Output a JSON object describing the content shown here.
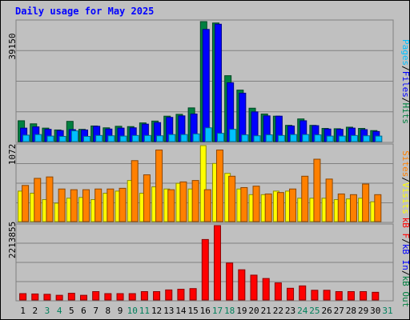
{
  "chart_data": {
    "type": "bar",
    "title": "Daily usage for May 2025",
    "colors": {
      "hits": "#008040",
      "files": "#0000ff",
      "pages": "#00c0ff",
      "visits": "#ffff00",
      "sites": "#ff8000",
      "kbytes": "#ff0000",
      "weekend_label": "#00805c",
      "weekday_label": "#000000",
      "label_kb_f": "#ff0000",
      "label_kb_in": "#0000ff",
      "label_kb_out": "#008040",
      "label_hits": "#008040",
      "label_files": "#0000ff",
      "label_pages": "#00c0ff",
      "label_visits": "#ffff00",
      "label_sites": "#ff8000",
      "label_sep": "#000000"
    },
    "days": [
      "1",
      "2",
      "3",
      "4",
      "5",
      "6",
      "7",
      "8",
      "9",
      "10",
      "11",
      "12",
      "13",
      "14",
      "15",
      "16",
      "17",
      "18",
      "19",
      "20",
      "21",
      "22",
      "23",
      "24",
      "25",
      "26",
      "27",
      "28",
      "29",
      "30",
      "31"
    ],
    "weekend_days": [
      "3",
      "4",
      "10",
      "11",
      "17",
      "18",
      "24",
      "25",
      "31"
    ],
    "panels": {
      "top": {
        "max_label": "39150",
        "ymax": 39150,
        "series": {
          "hits": [
            6800,
            5800,
            4400,
            3800,
            6600,
            4000,
            5100,
            4500,
            5000,
            4900,
            6100,
            6700,
            8300,
            8900,
            11000,
            39150,
            38700,
            21500,
            16800,
            10900,
            9000,
            8300,
            5300,
            7400,
            5300,
            4300,
            4200,
            4700,
            4300,
            3600,
            0
          ],
          "files": [
            4400,
            4800,
            4000,
            3600,
            3900,
            3800,
            5000,
            4100,
            4400,
            4500,
            5700,
            6200,
            7900,
            8400,
            9000,
            36600,
            38300,
            19200,
            15800,
            9700,
            8400,
            8300,
            5100,
            6800,
            5200,
            4100,
            4000,
            4400,
            3900,
            3300,
            0
          ],
          "pages": [
            2100,
            2300,
            1800,
            1700,
            3500,
            1700,
            2000,
            1900,
            1800,
            2000,
            2000,
            1900,
            2300,
            2300,
            2500,
            4500,
            2700,
            4000,
            2200,
            1900,
            2200,
            2000,
            2300,
            2300,
            2200,
            1800,
            1800,
            2000,
            1900,
            1800,
            0
          ]
        },
        "labels": {
          "hits": "Hits",
          "files": "Files",
          "pages": "Pages",
          "sep": "/"
        }
      },
      "middle": {
        "max_label": "1072",
        "ymax": 1072,
        "series": {
          "visits": [
            430,
            400,
            310,
            260,
            330,
            340,
            310,
            400,
            430,
            580,
            400,
            490,
            460,
            540,
            460,
            1072,
            820,
            680,
            460,
            380,
            380,
            430,
            430,
            330,
            330,
            330,
            310,
            320,
            330,
            280,
            0
          ],
          "sites": [
            510,
            610,
            630,
            460,
            450,
            450,
            460,
            460,
            470,
            860,
            660,
            1010,
            450,
            560,
            580,
            450,
            1010,
            640,
            480,
            500,
            390,
            410,
            460,
            640,
            880,
            600,
            390,
            380,
            530,
            380,
            0
          ]
        },
        "labels": {
          "visits": "Visits",
          "sites": "Sites",
          "sep": "/"
        }
      },
      "bottom": {
        "max_label": "2213855",
        "ymax": 2213855,
        "series": {
          "kbytes": [
            190000,
            180000,
            170000,
            140000,
            200000,
            140000,
            250000,
            190000,
            190000,
            190000,
            250000,
            250000,
            300000,
            320000,
            340000,
            1800000,
            2213855,
            1100000,
            900000,
            740000,
            640000,
            510000,
            350000,
            420000,
            290000,
            290000,
            250000,
            250000,
            250000,
            230000,
            0
          ]
        },
        "labels": {
          "kb_f": "kB F",
          "kb_in": "kB In",
          "kb_out": "kB Out",
          "sep": "/"
        }
      }
    }
  }
}
